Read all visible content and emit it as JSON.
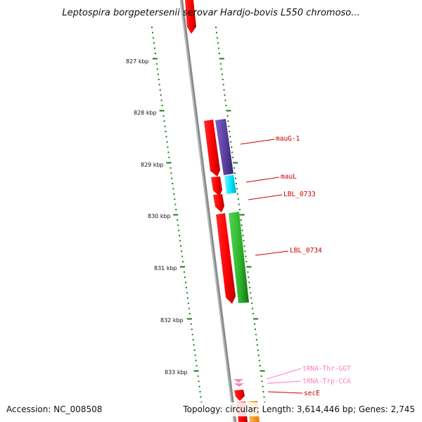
{
  "title": "Leptospira borgpetersenii serovar Hardjo-bovis L550 chromoso...",
  "footer": {
    "accession": "Accession: NC_008508",
    "topology": "Topology: circular; Length: 3,614,446 bp; Genes: 2,745"
  },
  "colors": {
    "forward_strand": "#ff0000",
    "mauG": "#5a3fa0",
    "mauL": "#00e5ff",
    "LBL_0734": "#2db52d",
    "tRNA": "#ff80c0",
    "secE_label": "#cc0000",
    "scale_ticks": "#1a7a1a",
    "backbone": "#888888",
    "right_partial": "#ff9900"
  },
  "scale_labels": [
    "827 kbp",
    "828 kbp",
    "829 kbp",
    "830 kbp",
    "831 kbp",
    "832 kbp",
    "833 kbp"
  ],
  "genes": [
    {
      "name": "mauG-1",
      "strand": "-",
      "color": "#5a3fa0"
    },
    {
      "name": "mauL",
      "strand": "-",
      "color": "#00e5ff"
    },
    {
      "name": "LBL_0733",
      "strand": "+",
      "color": "#ff0000"
    },
    {
      "name": "LBL_0734",
      "strand": "-",
      "color": "#2db52d"
    },
    {
      "name": "tRNA-Thr-GGT",
      "strand": "+",
      "color": "#ff80c0"
    },
    {
      "name": "tRNA-Trp-CCA",
      "strand": "+",
      "color": "#ff80c0"
    },
    {
      "name": "secE",
      "strand": "+",
      "color": "#ff0000"
    }
  ]
}
